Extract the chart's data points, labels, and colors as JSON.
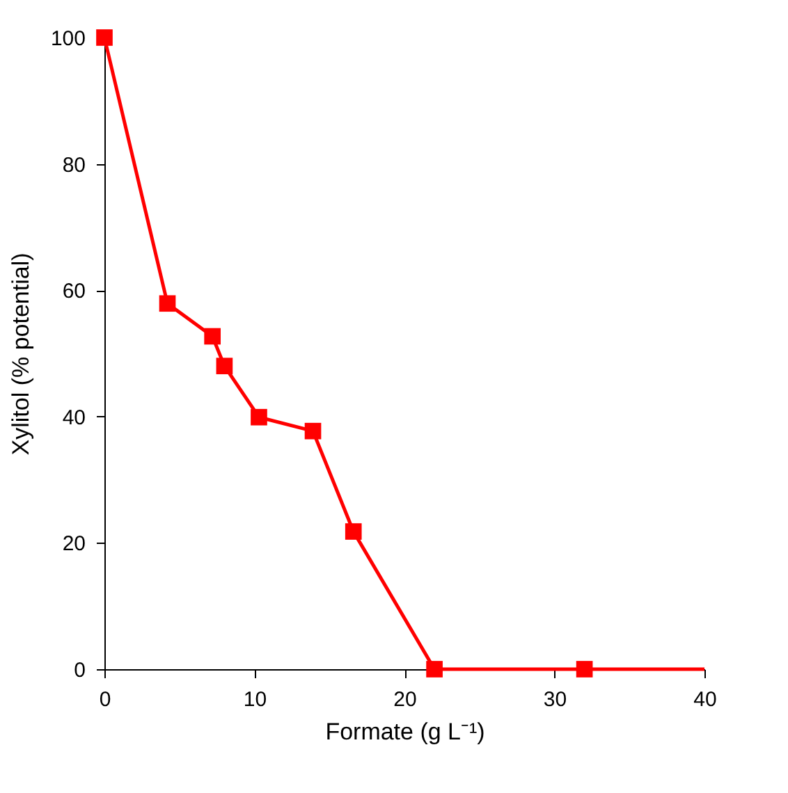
{
  "chart_data": {
    "type": "line",
    "xlabel": "Formate (g L⁻¹)",
    "ylabel": "Xylitol (% potential)",
    "xlim": [
      0,
      40
    ],
    "xticks": [
      0,
      10,
      20,
      30,
      40
    ],
    "ylim": [
      0,
      100
    ],
    "yticks": [
      0,
      20,
      40,
      60,
      80,
      100
    ],
    "grid": false,
    "series": [
      {
        "color": "#ff0000",
        "marker": "none",
        "line_style": "solid",
        "x": [
          0,
          4.2,
          7.2,
          8.0,
          10.3,
          13.9,
          16.6,
          22.0,
          32.0,
          40
        ],
        "values": [
          100,
          57.9,
          52.7,
          48.0,
          39.9,
          37.7,
          21.8,
          0,
          0,
          0
        ]
      },
      {
        "type": "scatter",
        "color": "#ff0000",
        "marker": "square",
        "x": [
          0,
          4.2,
          7.2,
          8.0,
          10.3,
          13.9,
          16.6,
          22.0,
          32.0
        ],
        "values": [
          100,
          57.9,
          52.7,
          48.0,
          39.9,
          37.7,
          21.8,
          0,
          0
        ]
      }
    ]
  }
}
